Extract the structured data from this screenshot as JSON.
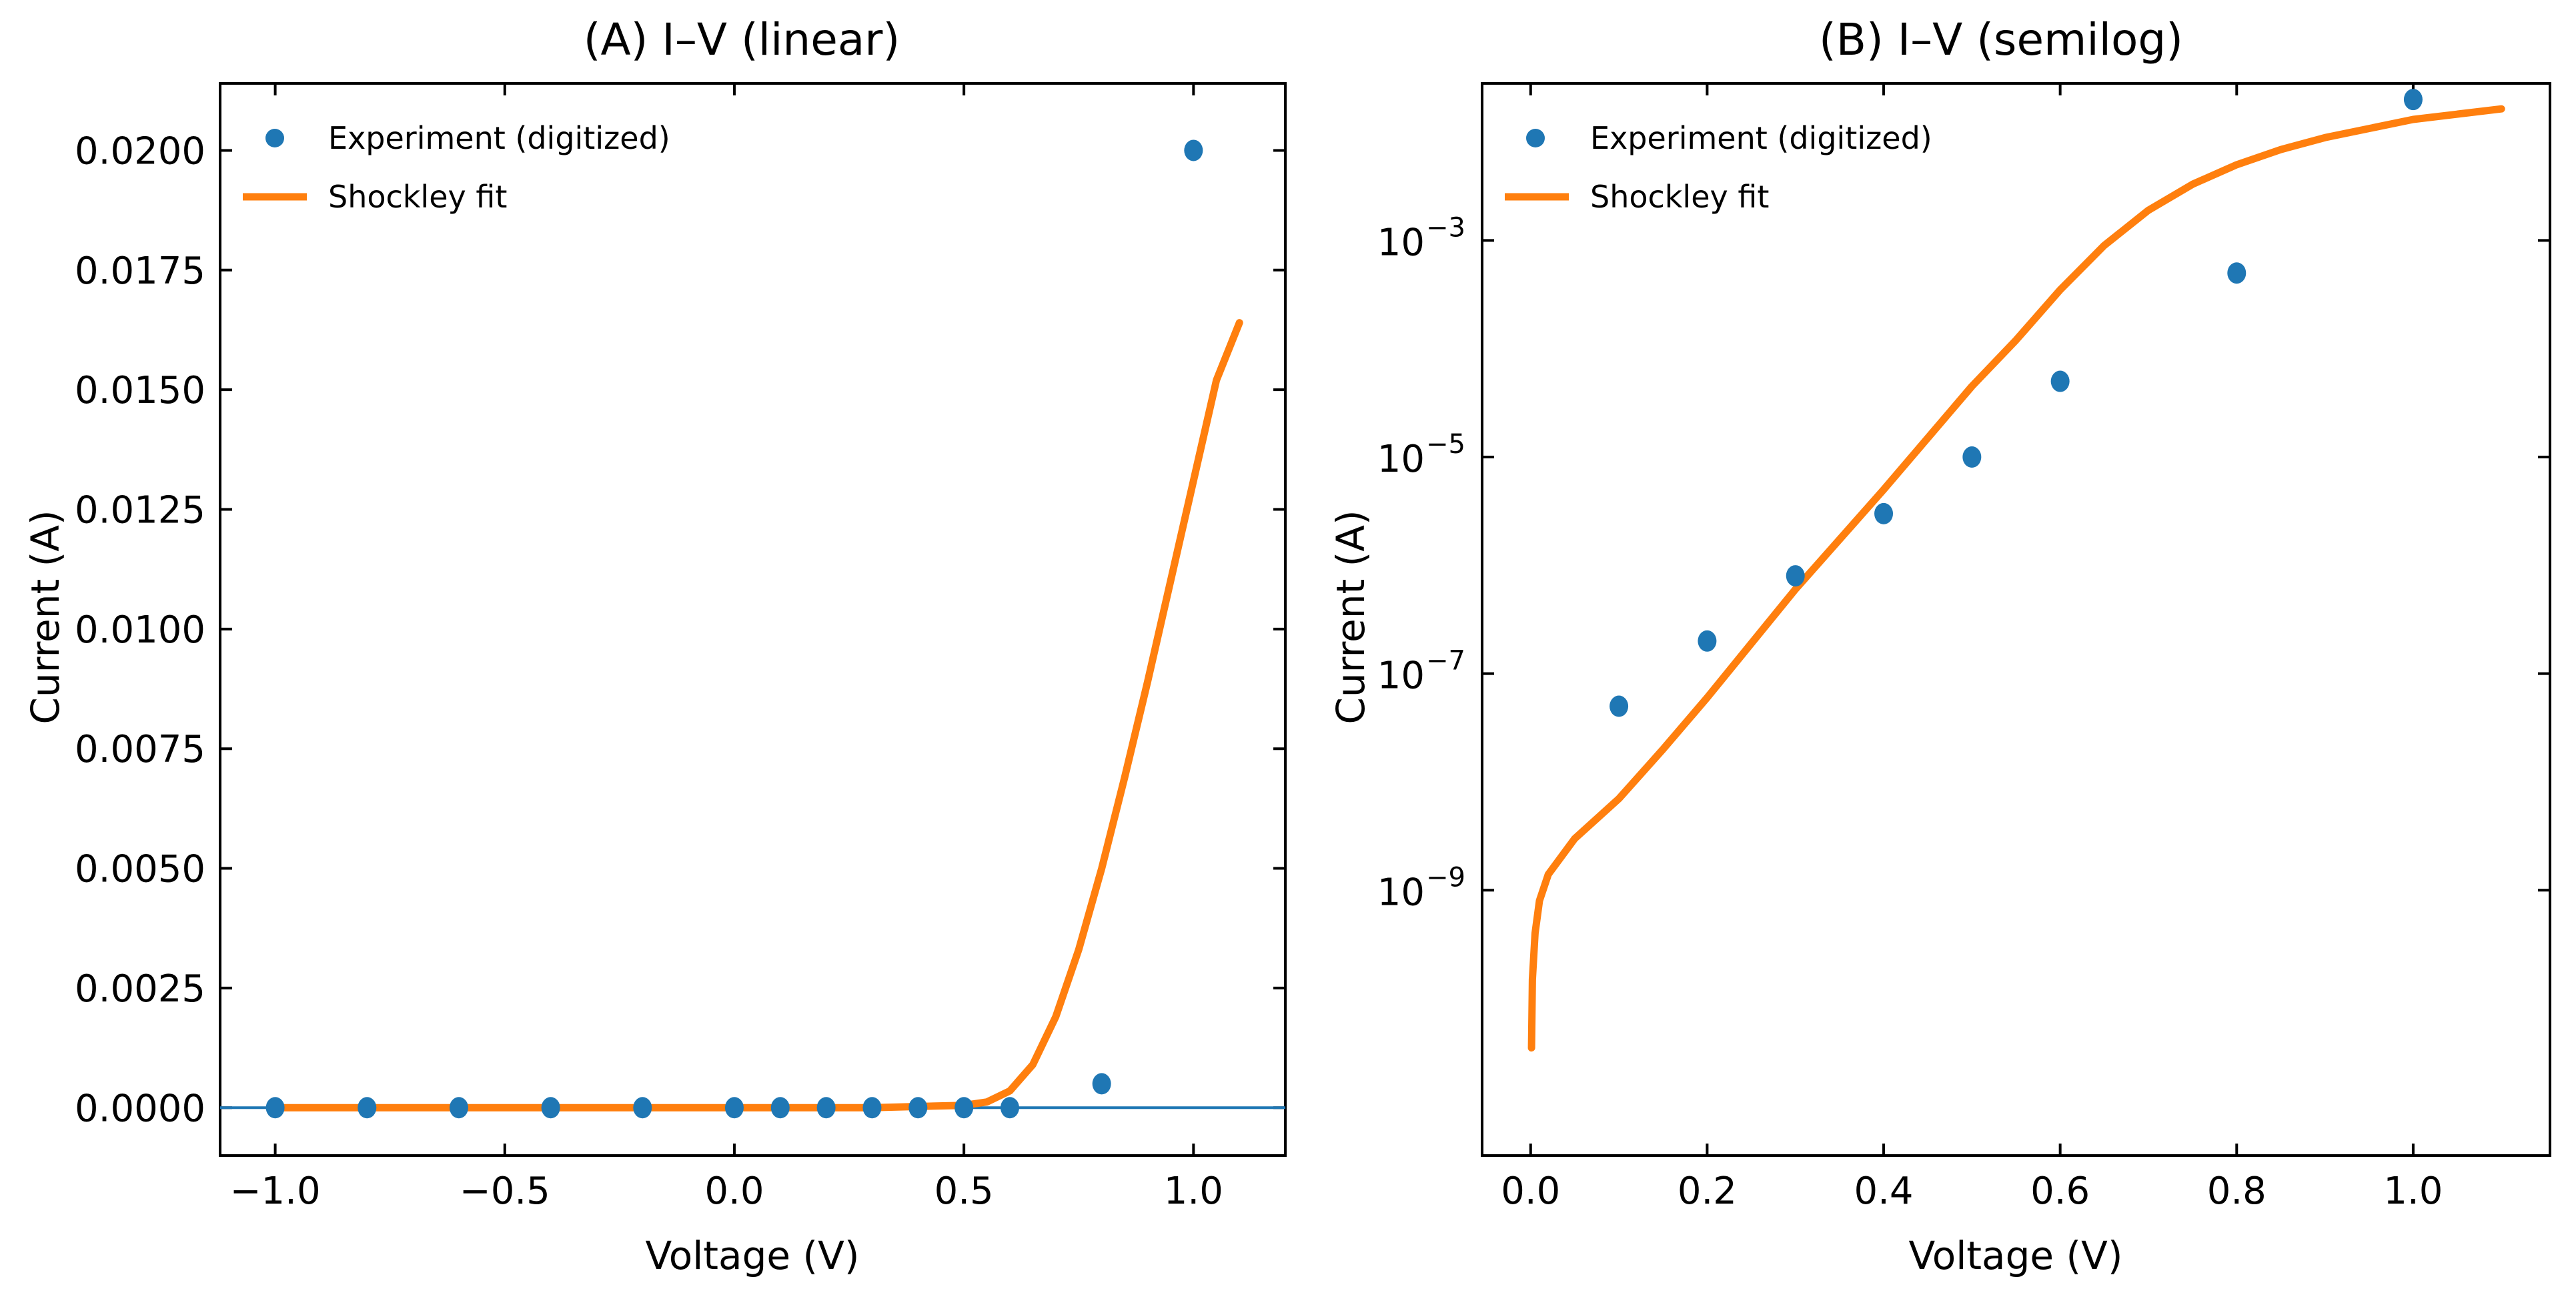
{
  "chart_data": [
    {
      "type": "scatter",
      "title": "(A) I–V (linear)",
      "xlabel": "Voltage (V)",
      "ylabel": "Current (A)",
      "xlim": [
        -1.12,
        1.2
      ],
      "ylim": [
        -0.001,
        0.0214
      ],
      "x_ticks": [
        -1.0,
        -0.5,
        0.0,
        0.5,
        1.0
      ],
      "x_tick_labels": [
        "−1.0",
        "−0.5",
        "0.0",
        "0.5",
        "1.0"
      ],
      "y_ticks": [
        0.0,
        0.0025,
        0.005,
        0.0075,
        0.01,
        0.0125,
        0.015,
        0.0175,
        0.02
      ],
      "y_tick_labels": [
        "0.0000",
        "0.0025",
        "0.0050",
        "0.0075",
        "0.0100",
        "0.0125",
        "0.0150",
        "0.0175",
        "0.0200"
      ],
      "grid": false,
      "legend_position": "top-left",
      "horizontal_line": {
        "y": 0.0,
        "color": "#1f77b4"
      },
      "series": [
        {
          "name": "Experiment (digitized)",
          "type": "scatter",
          "color": "#1f77b4",
          "x": [
            -1.0,
            -0.8,
            -0.6,
            -0.4,
            -0.2,
            0.0,
            0.1,
            0.2,
            0.3,
            0.4,
            0.5,
            0.6,
            0.8,
            1.0
          ],
          "y": [
            0,
            0,
            0,
            0,
            0,
            0,
            0,
            0,
            0,
            0,
            0,
            1e-07,
            0.0005,
            0.02
          ]
        },
        {
          "name": "Shockley fit",
          "type": "line",
          "color": "#ff7f0e",
          "x": [
            -1.0,
            0.0,
            0.3,
            0.5,
            0.55,
            0.6,
            0.65,
            0.7,
            0.75,
            0.8,
            0.85,
            0.9,
            0.95,
            1.0,
            1.05,
            1.1
          ],
          "y": [
            0.0,
            1e-07,
            6e-07,
            5e-05,
            0.00012,
            0.00035,
            0.0009,
            0.0019,
            0.0033,
            0.005,
            0.0069,
            0.0089,
            0.011,
            0.0131,
            0.0152,
            0.0164
          ]
        }
      ]
    },
    {
      "type": "scatter",
      "title": "(B) I–V (semilog)",
      "xlabel": "Voltage (V)",
      "ylabel": "Current (A)",
      "y_scale": "log",
      "xlim": [
        -0.055,
        1.155
      ],
      "ylim_log10": [
        -11.45,
        -1.55
      ],
      "x_ticks": [
        0.0,
        0.2,
        0.4,
        0.6,
        0.8,
        1.0
      ],
      "x_tick_labels": [
        "0.0",
        "0.2",
        "0.4",
        "0.6",
        "0.8",
        "1.0"
      ],
      "y_ticks_log10": [
        -9,
        -7,
        -5,
        -3
      ],
      "y_tick_base": "10",
      "y_tick_exponents": [
        "−9",
        "−7",
        "−5",
        "−3"
      ],
      "grid": false,
      "legend_position": "top-left",
      "series": [
        {
          "name": "Experiment (digitized)",
          "type": "scatter",
          "color": "#1f77b4",
          "x": [
            0.1,
            0.2,
            0.3,
            0.4,
            0.5,
            0.6,
            0.8,
            1.0
          ],
          "y": [
            5e-08,
            2e-07,
            8e-07,
            3e-06,
            1e-05,
            5e-05,
            0.0005,
            0.02
          ]
        },
        {
          "name": "Shockley fit",
          "type": "line",
          "color": "#ff7f0e",
          "x": [
            0.001,
            0.002,
            0.005,
            0.01,
            0.02,
            0.05,
            0.1,
            0.15,
            0.2,
            0.3,
            0.4,
            0.5,
            0.55,
            0.6,
            0.65,
            0.7,
            0.75,
            0.8,
            0.85,
            0.9,
            1.0,
            1.1
          ],
          "y": [
            3.5e-11,
            1.5e-10,
            4e-10,
            8e-10,
            1.4e-09,
            3e-09,
            7e-09,
            2e-08,
            6e-08,
            6e-07,
            5e-06,
            4.5e-05,
            0.00012,
            0.00035,
            0.0009,
            0.0019,
            0.0033,
            0.005,
            0.0069,
            0.0089,
            0.0131,
            0.0164
          ]
        }
      ]
    }
  ]
}
